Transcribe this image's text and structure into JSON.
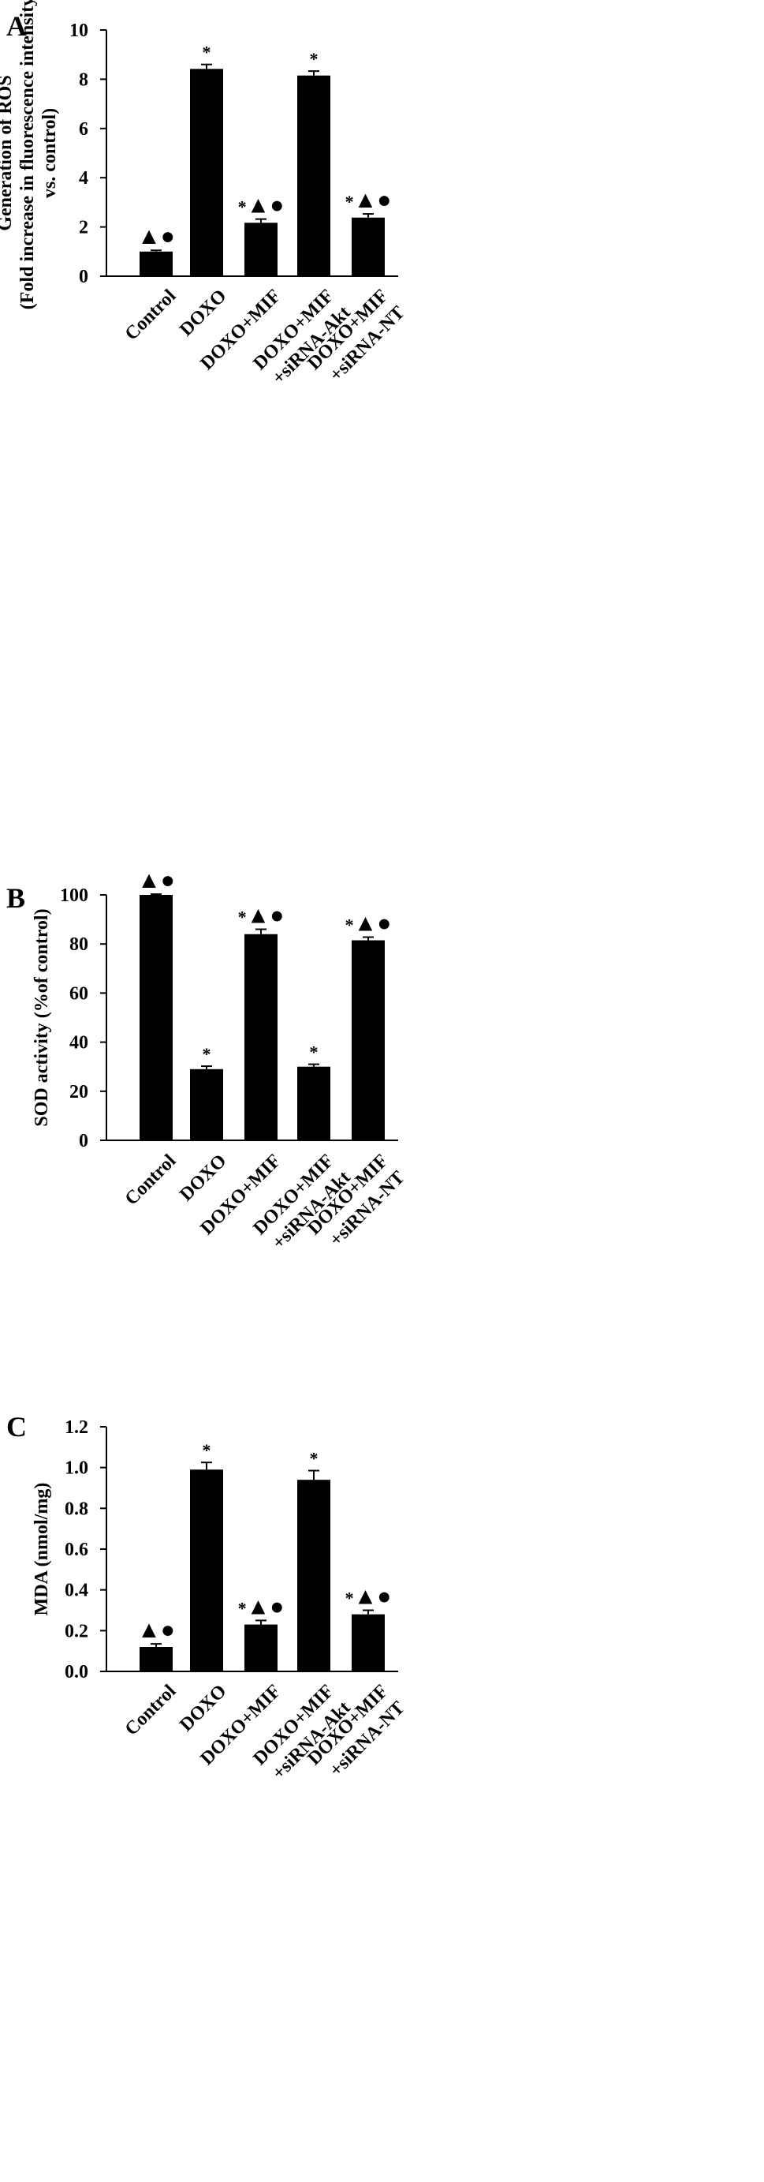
{
  "chart_data": [
    {
      "type": "bar",
      "panel_label": "A",
      "categories": [
        "Control",
        "DOXO",
        "DOXO+MIF",
        "DOXO+MIF\n+siRNA-Akt",
        "DOXO+MIF\n+siRNA-NT"
      ],
      "values": [
        1.0,
        8.42,
        2.17,
        8.15,
        2.38
      ],
      "errors": [
        0.05,
        0.18,
        0.15,
        0.18,
        0.15
      ],
      "annotations": [
        "▲●",
        "*",
        "*▲●",
        "*",
        "*▲●"
      ],
      "ylabel": "Generation of ROS\n(Fold increase in fluorescence intensity\nvs. control)",
      "xlabel": "",
      "ylim": [
        0,
        10
      ],
      "yticks": [
        "0",
        "2",
        "4",
        "6",
        "8",
        "10"
      ],
      "bar_color": "#000000",
      "grid": false
    },
    {
      "type": "bar",
      "panel_label": "B",
      "categories": [
        "Control",
        "DOXO",
        "DOXO+MIF",
        "DOXO+MIF\n+siRNA-Akt",
        "DOXO+MIF\n+siRNA-NT"
      ],
      "values": [
        100,
        29,
        84,
        30,
        81.5
      ],
      "errors": [
        0.3,
        1.2,
        2.0,
        1.0,
        1.3
      ],
      "annotations": [
        "▲●",
        "*",
        "*▲●",
        "*",
        "*▲●"
      ],
      "ylabel": "SOD activity (%of control)",
      "xlabel": "",
      "ylim": [
        0,
        100
      ],
      "yticks": [
        "0",
        "20",
        "40",
        "60",
        "80",
        "100"
      ],
      "bar_color": "#000000",
      "grid": false
    },
    {
      "type": "bar",
      "panel_label": "C",
      "categories": [
        "Control",
        "DOXO",
        "DOXO+MIF",
        "DOXO+MIF\n+siRNA-Akt",
        "DOXO+MIF\n+siRNA-NT"
      ],
      "values": [
        0.12,
        0.99,
        0.23,
        0.94,
        0.28
      ],
      "errors": [
        0.015,
        0.035,
        0.02,
        0.045,
        0.02
      ],
      "annotations": [
        "▲●",
        "*",
        "*▲●",
        "*",
        "*▲●"
      ],
      "ylabel": "MDA (nmol/mg)",
      "xlabel": "",
      "ylim": [
        0,
        1.2
      ],
      "yticks": [
        "0.0",
        "0.2",
        "0.4",
        "0.6",
        "0.8",
        "1.0",
        "1.2"
      ],
      "bar_color": "#000000",
      "grid": false
    }
  ]
}
